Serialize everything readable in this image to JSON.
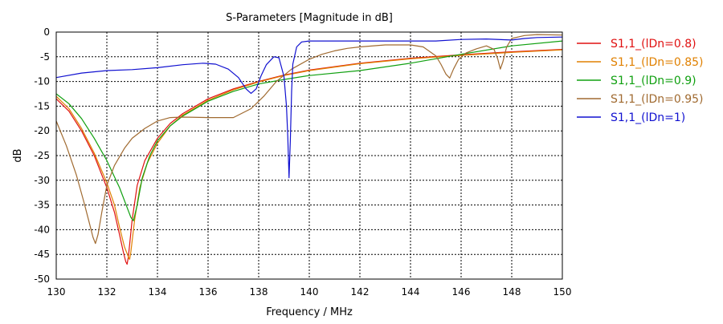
{
  "chart_data": {
    "type": "line",
    "title": "S-Parameters [Magnitude in dB]",
    "xlabel": "Frequency / MHz",
    "ylabel": "dB",
    "xlim": [
      130,
      150
    ],
    "ylim": [
      -50,
      0
    ],
    "xticks": [
      130,
      132,
      134,
      136,
      138,
      140,
      142,
      144,
      146,
      148,
      150
    ],
    "yticks": [
      0,
      -5,
      -10,
      -15,
      -20,
      -25,
      -30,
      -35,
      -40,
      -45,
      -50
    ],
    "xtick_labels": [
      "130",
      "132",
      "134",
      "136",
      "138",
      "140",
      "142",
      "144",
      "146",
      "148",
      "150"
    ],
    "ytick_labels": [
      "0",
      "-5",
      "-10",
      "-15",
      "-20",
      "-25",
      "-30",
      "-35",
      "-40",
      "-45",
      "-50"
    ],
    "grid": true,
    "legend_position": "right",
    "series": [
      {
        "name": "S1,1_(lDn=0.8)",
        "color": "#e01010",
        "x": [
          130,
          130.5,
          131,
          131.5,
          132,
          132.3,
          132.5,
          132.65,
          132.75,
          132.8,
          132.85,
          133,
          133.2,
          133.5,
          134,
          134.5,
          135,
          136,
          137,
          138,
          139,
          140,
          142,
          144,
          146,
          148,
          150
        ],
        "y": [
          -13.5,
          -16,
          -20,
          -25,
          -31.5,
          -36.5,
          -41,
          -44.5,
          -46.5,
          -47,
          -45.5,
          -38,
          -31,
          -26,
          -21.5,
          -18.5,
          -16.5,
          -13.5,
          -11.5,
          -10,
          -8.7,
          -7.7,
          -6.3,
          -5.3,
          -4.6,
          -4,
          -3.5
        ]
      },
      {
        "name": "S1,1_(lDn=0.85)",
        "color": "#e08000",
        "x": [
          130,
          130.5,
          131,
          131.5,
          132,
          132.3,
          132.5,
          132.7,
          132.85,
          132.9,
          132.95,
          133.1,
          133.3,
          133.6,
          134,
          134.5,
          135,
          136,
          137,
          138,
          139,
          140,
          142,
          144,
          146,
          148,
          150
        ],
        "y": [
          -13,
          -15.5,
          -19.5,
          -24.5,
          -30.5,
          -35,
          -39.5,
          -43.5,
          -45.5,
          -46,
          -44.5,
          -38,
          -31.5,
          -26.5,
          -22.5,
          -19,
          -16.8,
          -13.8,
          -11.7,
          -10.1,
          -8.8,
          -7.8,
          -6.4,
          -5.4,
          -4.7,
          -4.1,
          -3.6
        ]
      },
      {
        "name": "S1,1_(lDn=0.9)",
        "color": "#10a010",
        "x": [
          130,
          130.5,
          131,
          131.5,
          132,
          132.5,
          132.8,
          132.95,
          133.05,
          133.2,
          133.4,
          133.7,
          134,
          134.5,
          135,
          136,
          137,
          138,
          139,
          140,
          142,
          144,
          146,
          148,
          150
        ],
        "y": [
          -12.5,
          -14.5,
          -17.5,
          -21.5,
          -26,
          -31.5,
          -35.5,
          -37.5,
          -38.2,
          -35,
          -29.5,
          -25,
          -22,
          -19,
          -17,
          -14,
          -12,
          -10.5,
          -9.6,
          -8.8,
          -7.8,
          -6.3,
          -4.5,
          -2.8,
          -1.8
        ]
      },
      {
        "name": "S1,1_(lDn=0.95)",
        "color": "#a06a30",
        "x": [
          130,
          130.4,
          130.8,
          131.1,
          131.3,
          131.45,
          131.55,
          131.65,
          131.8,
          132,
          132.3,
          132.7,
          133,
          133.5,
          134,
          134.5,
          135,
          136,
          137,
          137.7,
          138.2,
          138.7,
          139.3,
          140,
          140.5,
          141,
          141.5,
          142,
          143,
          144,
          144.5,
          145,
          145.2,
          145.4,
          145.55,
          145.7,
          145.9,
          146.2,
          146.6,
          147,
          147.3,
          147.45,
          147.55,
          147.65,
          147.8,
          148,
          148.5,
          149,
          150
        ],
        "y": [
          -18,
          -23,
          -29,
          -34.5,
          -38.5,
          -41.5,
          -42.8,
          -41,
          -36.5,
          -31,
          -27,
          -23.5,
          -21.5,
          -19.5,
          -18,
          -17.3,
          -17.2,
          -17.3,
          -17.3,
          -15.5,
          -13,
          -10,
          -7.5,
          -5.5,
          -4.5,
          -3.8,
          -3.3,
          -3,
          -2.6,
          -2.6,
          -3,
          -4.8,
          -6.5,
          -8.5,
          -9.3,
          -7.5,
          -5.5,
          -4.2,
          -3.4,
          -2.8,
          -3.5,
          -5.5,
          -7.5,
          -6,
          -3,
          -1.3,
          -0.7,
          -0.5,
          -0.6
        ]
      },
      {
        "name": "S1,1_(lDn=1)",
        "color": "#1010d0",
        "x": [
          130,
          131,
          132,
          133,
          134,
          135,
          135.8,
          136.3,
          136.8,
          137.2,
          137.5,
          137.7,
          137.9,
          138.1,
          138.3,
          138.6,
          138.8,
          139,
          139.1,
          139.15,
          139.2,
          139.25,
          139.3,
          139.35,
          139.5,
          139.7,
          140,
          141,
          142,
          143,
          144,
          145,
          146,
          147,
          148,
          148.5,
          149,
          150
        ],
        "y": [
          -9.2,
          -8.3,
          -7.8,
          -7.6,
          -7.2,
          -6.6,
          -6.3,
          -6.5,
          -7.5,
          -9.2,
          -11.5,
          -12.4,
          -11.5,
          -8.8,
          -6.6,
          -5,
          -5.2,
          -9,
          -15,
          -21,
          -29.5,
          -22,
          -12,
          -6.5,
          -3,
          -2,
          -1.8,
          -1.8,
          -1.8,
          -1.8,
          -1.8,
          -1.8,
          -1.5,
          -1.4,
          -1.6,
          -1.3,
          -1.1,
          -1
        ]
      }
    ]
  }
}
